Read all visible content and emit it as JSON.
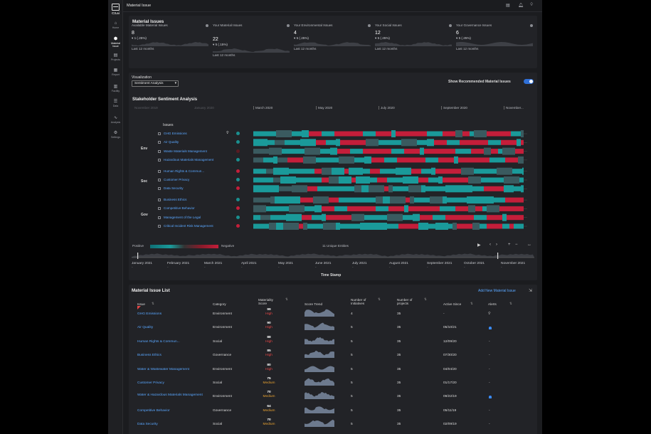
{
  "app": {
    "logo_text": "C3.ai",
    "page_title": "Material Issue"
  },
  "sidebar": {
    "items": [
      {
        "label": "Home",
        "icon": "home-icon",
        "glyph": "⌂"
      },
      {
        "label": "Material Issue",
        "icon": "material-issue-icon",
        "glyph": "⬢",
        "active": true
      },
      {
        "label": "Projects",
        "icon": "projects-icon",
        "glyph": "▤"
      },
      {
        "label": "Report",
        "icon": "report-icon",
        "glyph": "▦"
      },
      {
        "label": "Facility",
        "icon": "facility-icon",
        "glyph": "▥"
      },
      {
        "label": "Data",
        "icon": "data-icon",
        "glyph": "☰"
      },
      {
        "label": "Analysis",
        "icon": "analysis-icon",
        "glyph": "∿"
      },
      {
        "label": "Settings",
        "icon": "settings-icon",
        "glyph": "⚙"
      }
    ]
  },
  "topbar_icons": [
    "document-icon",
    "bell-icon",
    "lightbulb-icon"
  ],
  "summary": {
    "title": "Material Issues",
    "kpis": [
      {
        "label": "Available Material Issues",
        "value": "8",
        "change": "▾ 1 (.25%)",
        "period": "Last 12 months"
      },
      {
        "label": "Your Material Issues",
        "value": "22",
        "change": "▾ 5 (.15%)",
        "period": "Last 12 months"
      },
      {
        "label": "Your Environmental Issues",
        "value": "4",
        "change": "▾ 5 (.25%)",
        "period": "Last 12 months"
      },
      {
        "label": "Your Social Issues",
        "value": "12",
        "change": "▾ 5 (.25%)",
        "period": "Last 12 months"
      },
      {
        "label": "Your Governance Issues",
        "value": "6",
        "change": "▾ 5 (.25%)",
        "period": "Last 12 months"
      }
    ]
  },
  "visualization": {
    "label": "Visualization",
    "selected": "Sentiment Analysis",
    "toggle_label": "Show Recommended Material Issues",
    "toggle_on": true
  },
  "sentiment": {
    "title": "Stakeholder Sentiment Analysis",
    "months": [
      "November 2019",
      "January 2020",
      "March 2020",
      "May 2020",
      "July 2020",
      "September 2020",
      "November..."
    ],
    "issues_header": "Issues",
    "groups": [
      {
        "name": "Env",
        "issues": [
          "GHG Emissions",
          "Air Quality",
          "Waste Materials Management",
          "Hazardous Materials Management"
        ]
      },
      {
        "name": "Soc",
        "issues": [
          "Human Rights & Commun...",
          "Customer Privacy",
          "Data Security"
        ]
      },
      {
        "name": "Gov",
        "issues": [
          "Business Ethics",
          "Competitive Behavior",
          "Management of the Legal",
          "Critical Incident Risk Management"
        ]
      }
    ],
    "positive_label": "Positive",
    "negative_label": "Negative",
    "entities": "11 Unique Entities",
    "timeline_months": [
      "January 2021",
      "February 2021",
      "March 2021",
      "April 2021",
      "May 2021",
      "June 2021",
      "July 2021",
      "August 2021",
      "September 2021",
      "October 2021",
      "November 2021"
    ],
    "timeline_axis": "Time Stamp",
    "colors": {
      "positive": "#1a9a9a",
      "neutral": "#3a5a5f",
      "negative": "#c41e3a"
    }
  },
  "table": {
    "title": "Material Issue List",
    "add_label": "Add New Material Issue",
    "headers": {
      "issue": "Issue",
      "category": "Category",
      "score": "Materiality Score",
      "trend": "Score Trend",
      "initiatives": "Number of Initiatives",
      "projects": "Number of projects",
      "since": "Active Since",
      "alerts": "Alerts"
    },
    "rows": [
      {
        "issue": "GHG Emissions",
        "category": "Environment",
        "score": "99",
        "level": "High",
        "initiatives": "4",
        "projects": "35",
        "since": "-",
        "alert": "lightbulb"
      },
      {
        "issue": "Air Quality",
        "category": "Environment",
        "score": "90",
        "level": "High",
        "initiatives": "5",
        "projects": "35",
        "since": "05/10/21",
        "alert": "bell"
      },
      {
        "issue": "Human Rights & Commun...",
        "category": "Social",
        "score": "88",
        "level": "High",
        "initiatives": "5",
        "projects": "35",
        "since": "12/09/20",
        "alert": "-"
      },
      {
        "issue": "Business Ethics",
        "category": "Governance",
        "score": "85",
        "level": "High",
        "initiatives": "5",
        "projects": "35",
        "since": "07/30/20",
        "alert": "-"
      },
      {
        "issue": "Water & Wastewater Management",
        "category": "Environment",
        "score": "80",
        "level": "High",
        "initiatives": "5",
        "projects": "35",
        "since": "04/04/20",
        "alert": "-"
      },
      {
        "issue": "Customer Privacy",
        "category": "Social",
        "score": "75",
        "level": "Medium",
        "initiatives": "5",
        "projects": "35",
        "since": "01/17/20",
        "alert": "-"
      },
      {
        "issue": "Water & Hazardous Materials Management",
        "category": "Environment",
        "score": "70",
        "level": "Medium",
        "initiatives": "5",
        "projects": "35",
        "since": "09/22/19",
        "alert": "bell"
      },
      {
        "issue": "Competitive Behavior",
        "category": "Governance",
        "score": "64",
        "level": "Medium",
        "initiatives": "5",
        "projects": "35",
        "since": "05/11/19",
        "alert": "-"
      },
      {
        "issue": "Data Security",
        "category": "Social",
        "score": "70",
        "level": "Medium",
        "initiatives": "5",
        "projects": "35",
        "since": "02/09/19",
        "alert": "-"
      }
    ]
  }
}
